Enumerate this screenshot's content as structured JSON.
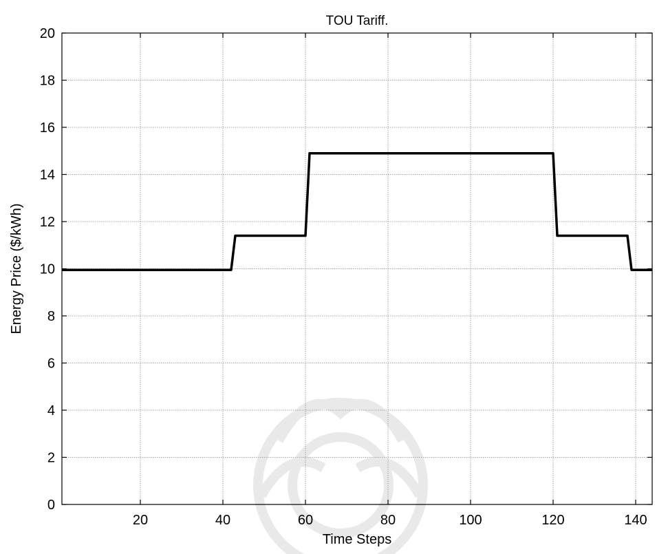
{
  "chart_data": {
    "type": "line",
    "title": "TOU Tariff.",
    "xlabel": "Time Steps",
    "ylabel": "Energy Price ($/kWh)",
    "xlim": [
      1,
      144
    ],
    "ylim": [
      0,
      20
    ],
    "xticks": [
      20,
      40,
      60,
      80,
      100,
      120,
      140
    ],
    "yticks": [
      0,
      2,
      4,
      6,
      8,
      10,
      12,
      14,
      16,
      18,
      20
    ],
    "grid": true,
    "series": [
      {
        "color": "#000000",
        "x": [
          1,
          42,
          43,
          60,
          61,
          120,
          121,
          138,
          139,
          144
        ],
        "y": [
          9.95,
          9.95,
          11.4,
          11.4,
          14.9,
          14.9,
          11.4,
          11.4,
          9.95,
          9.95
        ]
      }
    ]
  },
  "watermark": {
    "description_icon": "decorative-mandala-watermark"
  }
}
